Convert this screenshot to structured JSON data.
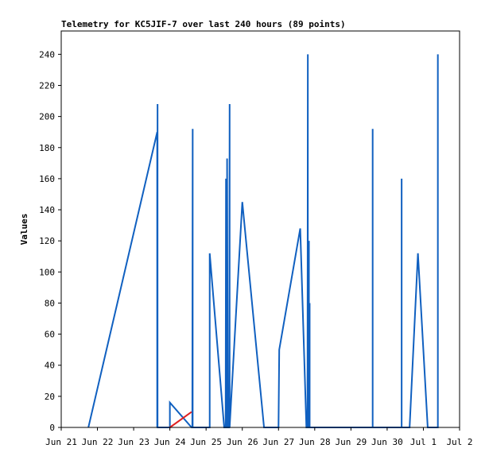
{
  "chart_data": {
    "type": "line",
    "title": "Telemetry for KC5JIF-7 over last 240 hours (89 points)",
    "xlabel": "",
    "ylabel": "Values",
    "xlim": [
      0,
      11
    ],
    "ylim": [
      0,
      255
    ],
    "x_ticks": [
      "Jun 21",
      "Jun 22",
      "Jun 23",
      "Jun 24",
      "Jun 25",
      "Jun 26",
      "Jun 27",
      "Jun 28",
      "Jun 29",
      "Jun 30",
      "Jul 1",
      "Jul 2"
    ],
    "y_ticks": [
      0,
      20,
      40,
      60,
      80,
      100,
      120,
      140,
      160,
      180,
      200,
      220,
      240
    ],
    "grid": false,
    "legend": "none",
    "colors": {
      "blue": "#1060c0",
      "red": "#e02020",
      "frame": "#000000"
    },
    "series": [
      {
        "color": "#1060c0",
        "points": [
          [
            0.75,
            0
          ],
          [
            2.65,
            190
          ],
          [
            2.65,
            0
          ],
          [
            2.66,
            208
          ],
          [
            2.66,
            0
          ],
          [
            3.0,
            0
          ],
          [
            3.0,
            16
          ],
          [
            3.6,
            0
          ],
          [
            3.62,
            0
          ],
          [
            3.63,
            192
          ],
          [
            3.63,
            0
          ],
          [
            4.1,
            0
          ],
          [
            4.1,
            112
          ],
          [
            4.5,
            0
          ],
          [
            4.54,
            0
          ],
          [
            4.55,
            160
          ],
          [
            4.55,
            0
          ],
          [
            4.58,
            0
          ],
          [
            4.58,
            173
          ],
          [
            4.6,
            0
          ],
          [
            4.64,
            0
          ],
          [
            4.65,
            208
          ],
          [
            4.65,
            0
          ],
          [
            5.0,
            145
          ],
          [
            5.6,
            0
          ],
          [
            6.0,
            0
          ],
          [
            6.0,
            0
          ],
          [
            6.02,
            50
          ],
          [
            6.6,
            128
          ],
          [
            6.77,
            0
          ],
          [
            6.8,
            0
          ],
          [
            6.81,
            240
          ],
          [
            6.81,
            0
          ],
          [
            6.83,
            0
          ],
          [
            6.84,
            120
          ],
          [
            6.84,
            0
          ],
          [
            6.86,
            0
          ],
          [
            6.86,
            80
          ],
          [
            6.86,
            0
          ],
          [
            8.6,
            0
          ],
          [
            8.6,
            192
          ],
          [
            8.6,
            0
          ],
          [
            9.4,
            0
          ],
          [
            9.4,
            160
          ],
          [
            9.4,
            0
          ],
          [
            9.62,
            0
          ],
          [
            9.85,
            112
          ],
          [
            10.12,
            0
          ],
          [
            10.4,
            0
          ],
          [
            10.4,
            240
          ],
          [
            10.4,
            0
          ]
        ]
      },
      {
        "color": "#e02020",
        "points": [
          [
            3.0,
            0
          ],
          [
            3.6,
            10
          ]
        ]
      }
    ]
  }
}
